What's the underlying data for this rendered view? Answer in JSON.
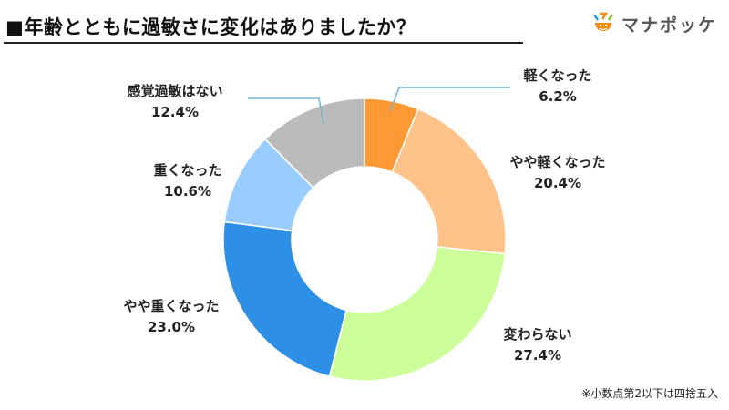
{
  "title": "■年齢とともに過敏さに変化はありましたか？",
  "logo": {
    "text": "マナポッケ"
  },
  "note": "※小数点第2以下は四捨五入",
  "chart_data": {
    "type": "pie",
    "donut": true,
    "title": "■年齢とともに過敏さに変化はありましたか？",
    "categories": [
      "軽くなった",
      "やや軽くなった",
      "変わらない",
      "やや重くなった",
      "重くなった",
      "感覚過敏はない"
    ],
    "values": [
      6.2,
      20.4,
      27.4,
      23.0,
      10.6,
      12.4
    ],
    "value_labels": [
      "6.2%",
      "20.4%",
      "27.4%",
      "23.0%",
      "10.6%",
      "12.4%"
    ],
    "colors": [
      "#FF9933",
      "#FFC389",
      "#CCFF99",
      "#2E8FE6",
      "#99CCFF",
      "#BBBBBB"
    ],
    "start": "top",
    "direction": "clockwise"
  }
}
